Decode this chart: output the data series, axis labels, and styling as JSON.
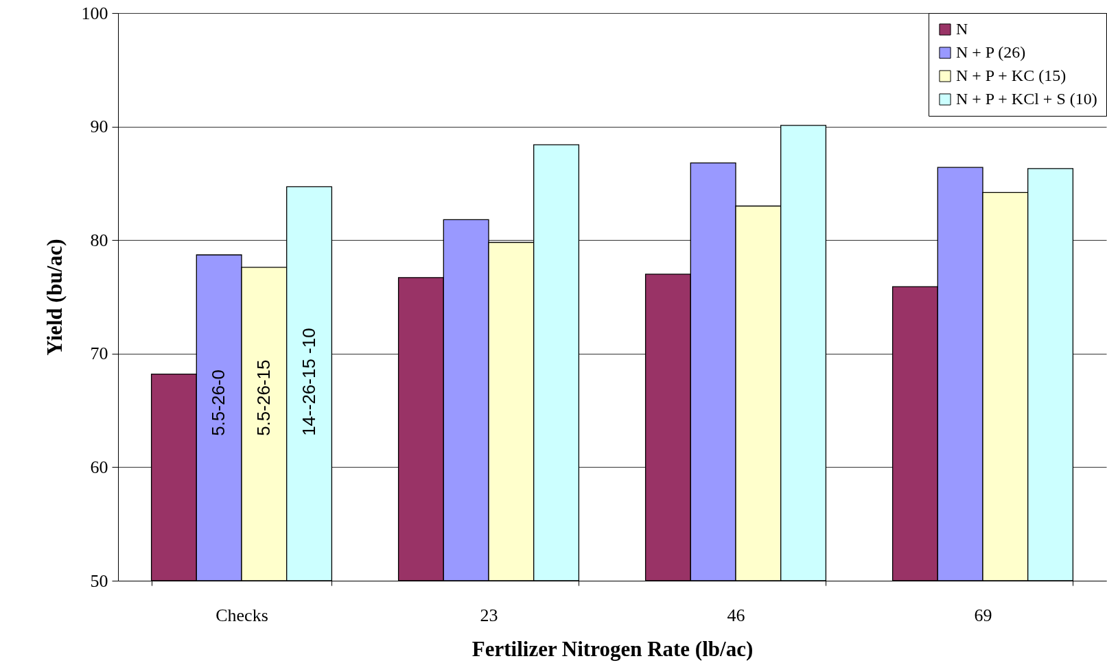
{
  "chart_data": {
    "type": "bar",
    "xlabel": "Fertilizer Nitrogen Rate (lb/ac)",
    "ylabel": "Yield (bu/ac)",
    "categories": [
      "Checks",
      "23",
      "46",
      "69"
    ],
    "series": [
      {
        "name": "N",
        "color": "#993366",
        "values": [
          68.2,
          76.7,
          77.0,
          75.9
        ]
      },
      {
        "name": "N + P (26)",
        "color": "#9999ff",
        "values": [
          78.7,
          81.8,
          86.8,
          86.4
        ]
      },
      {
        "name": "N + P + KC (15)",
        "color": "#ffffcc",
        "values": [
          77.6,
          79.8,
          83.0,
          84.2
        ]
      },
      {
        "name": "N + P + KCl + S (10)",
        "color": "#ccffff",
        "values": [
          84.7,
          88.4,
          90.1,
          86.3
        ]
      }
    ],
    "annotations": [
      "5.5-26-0",
      "5.5-26-15",
      "14--26-15 -10"
    ],
    "ylim": [
      50,
      100
    ],
    "yticks": [
      50,
      60,
      70,
      80,
      90,
      100
    ],
    "grid": "y",
    "legend": "top right"
  }
}
